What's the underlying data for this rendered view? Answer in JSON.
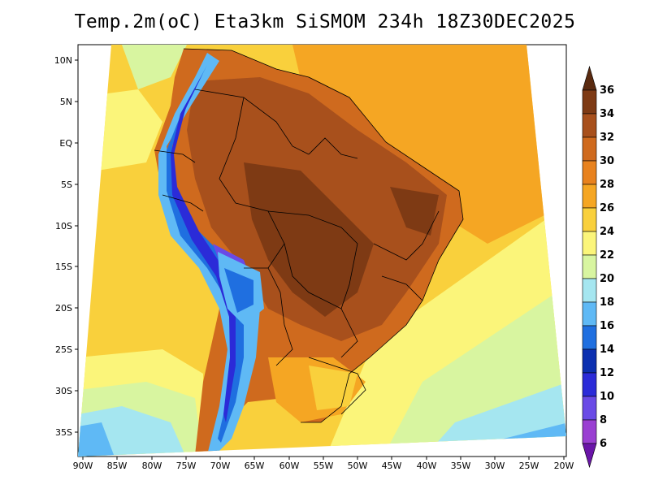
{
  "title": "Temp.2m(oC) Eta3km SiSMOM 234h 18Z30DEC2025",
  "map": {
    "variable": "2 m temperature",
    "units": "oC",
    "lat_labels": [
      "10N",
      "5N",
      "EQ",
      "5S",
      "10S",
      "15S",
      "20S",
      "25S",
      "30S",
      "35S"
    ],
    "lon_labels": [
      "90W",
      "85W",
      "80W",
      "75W",
      "70W",
      "65W",
      "60W",
      "55W",
      "50W",
      "45W",
      "40W",
      "35W",
      "30W",
      "25W",
      "20W"
    ]
  },
  "colorbar": {
    "labels": [
      "36",
      "34",
      "32",
      "30",
      "28",
      "26",
      "24",
      "22",
      "20",
      "18",
      "16",
      "14",
      "12",
      "10",
      "8",
      "6"
    ],
    "colors": [
      "#5a2a10",
      "#7e3a14",
      "#a8501c",
      "#cf6a1e",
      "#e8821e",
      "#f5a623",
      "#f9d03c",
      "#fbf57a",
      "#d8f5a0",
      "#a5e6f0",
      "#5fb9f5",
      "#1f6fe0",
      "#0b2fb0",
      "#2b2bd8",
      "#6a4ae6",
      "#9a3fd2",
      "#6a15a8"
    ]
  }
}
